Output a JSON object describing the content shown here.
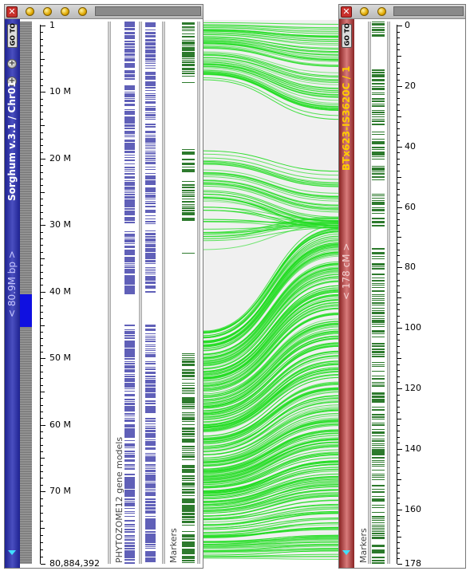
{
  "left_panel": {
    "title": "Sorghum v.3.1 / Chr01",
    "range_label": "< 80.9M bp >",
    "goto_label": "GO TO",
    "ruler_ticks": [
      {
        "label": "1",
        "pos": 0
      },
      {
        "label": "10 M",
        "pos": 10
      },
      {
        "label": "20 M",
        "pos": 20
      },
      {
        "label": "30 M",
        "pos": 30
      },
      {
        "label": "40 M",
        "pos": 40
      },
      {
        "label": "50 M",
        "pos": 50
      },
      {
        "label": "60 M",
        "pos": 60
      },
      {
        "label": "70 M",
        "pos": 70
      },
      {
        "label": "80,884,392",
        "pos": 80.884392
      }
    ],
    "ruler_max": 80.884392,
    "track_labels": {
      "gene_models": "PHYTOZOME12 gene models",
      "markers": "Markers"
    },
    "colors": {
      "sidebar": "#2b2fa0",
      "highlight": "#1010e0",
      "genes": "#6060b8",
      "markers": "#2d7a2d"
    }
  },
  "right_panel": {
    "title": "BTx623-IS3620C / 1",
    "range_label": "< 178 cM >",
    "goto_label": "GO TO",
    "ruler_ticks": [
      {
        "label": "0",
        "pos": 0
      },
      {
        "label": "20",
        "pos": 20
      },
      {
        "label": "40",
        "pos": 40
      },
      {
        "label": "60",
        "pos": 60
      },
      {
        "label": "80",
        "pos": 80
      },
      {
        "label": "100",
        "pos": 100
      },
      {
        "label": "120",
        "pos": 120
      },
      {
        "label": "140",
        "pos": 140
      },
      {
        "label": "160",
        "pos": 160
      },
      {
        "label": "178",
        "pos": 178
      }
    ],
    "ruler_max": 178,
    "track_labels": {
      "markers": "Markers"
    },
    "colors": {
      "sidebar": "#a83a3a",
      "title": "#ffcc00",
      "markers": "#2d7a2d"
    }
  },
  "connector": {
    "color": "#22dd22",
    "background": "#f0f0f0"
  }
}
